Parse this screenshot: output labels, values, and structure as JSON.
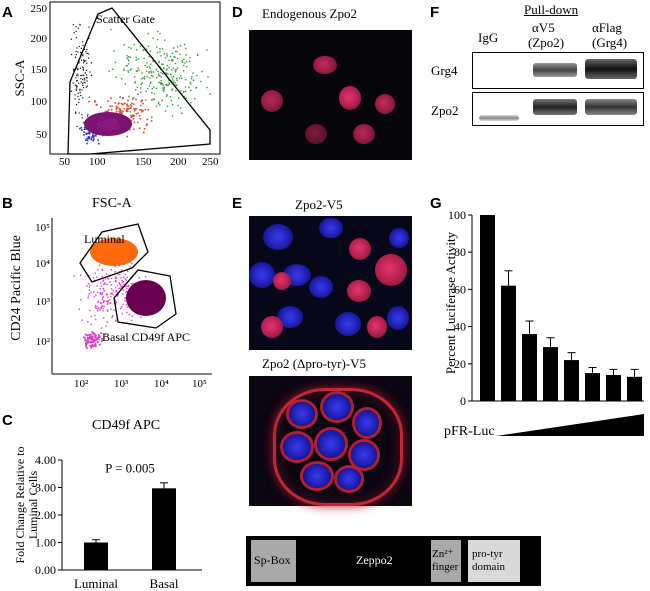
{
  "panels": {
    "A": {
      "label": "A",
      "ylabel": "SSC-A",
      "gate_label": "Scatter Gate",
      "y_ticks": [
        "250",
        "200",
        "150",
        "100",
        "50"
      ],
      "x_ticks": [
        "50",
        "100",
        "150",
        "200",
        "250"
      ]
    },
    "B": {
      "label": "B",
      "title": "FSC-A",
      "ylabel": "CD24 Pacific Blue",
      "luminal_label": "Luminal",
      "basal_label": "Basal CD49f APC",
      "y_ticks": [
        "10⁵",
        "10⁴",
        "10³",
        "10²"
      ],
      "x_ticks": [
        "10²",
        "10³",
        "10⁴",
        "10⁵"
      ]
    },
    "C": {
      "label": "C",
      "title": "CD49f APC",
      "ylabel": "Fold Change Relative to Luminal Cells",
      "pvalue": "P = 0.005"
    },
    "D": {
      "label": "D",
      "title": "Endogenous Zpo2"
    },
    "E": {
      "label": "E",
      "title_top": "Zpo2-V5",
      "title_bottom": "Zpo2 (Δpro-tyr)-V5"
    },
    "F": {
      "label": "F",
      "pulldown": "Pull-down",
      "lanes": [
        "IgG",
        "αV5",
        "αFlag"
      ],
      "lane_sub": [
        "",
        "(Zpo2)",
        "(Grg4)"
      ],
      "rows": [
        "Grg4",
        "Zpo2"
      ]
    },
    "G": {
      "label": "G",
      "ylabel": "Percent Luciferase Activity",
      "xlabel": "pFR-Luc"
    },
    "domain": {
      "segments": [
        "Sp-Box",
        "Zeppo2",
        "Zn²⁺ finger",
        "pro-tyr domain"
      ]
    }
  },
  "colors": {
    "luminal": "#ff6a10",
    "basal": "#6a0050",
    "magenta": "#e040c0",
    "nucleus_red": "#d02a5c",
    "dapi_blue": "#2020c0"
  },
  "chart_data": [
    {
      "type": "bar",
      "title": "CD49f APC",
      "categories": [
        "Luminal",
        "Basal"
      ],
      "values": [
        1.0,
        2.97
      ],
      "errors": [
        0.1,
        0.2
      ],
      "ylabel": "Fold Change Relative to Luminal Cells",
      "ylim": [
        0.0,
        4.0
      ],
      "yticks": [
        "0.00",
        "1.00",
        "2.00",
        "3.00",
        "4.00"
      ],
      "annotation": "P = 0.005"
    },
    {
      "type": "bar",
      "categories": [
        "",
        "",
        "",
        "",
        "",
        "",
        "",
        ""
      ],
      "values": [
        100,
        62,
        36,
        29,
        22,
        15,
        14,
        13
      ],
      "errors": [
        0,
        8,
        7,
        5,
        4,
        3,
        3,
        4
      ],
      "ylabel": "Percent Luciferase Activity",
      "xlabel": "pFR-Luc",
      "ylim": [
        0,
        100
      ],
      "yticks": [
        "0",
        "20",
        "40",
        "60",
        "80",
        "100"
      ]
    }
  ]
}
